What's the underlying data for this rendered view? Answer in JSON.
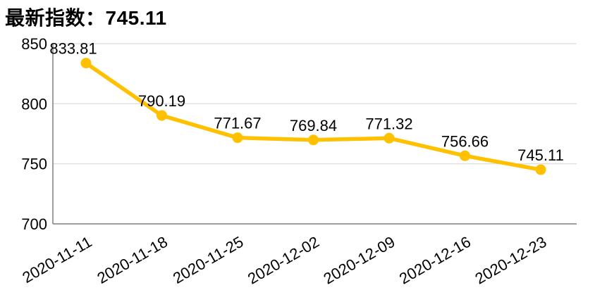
{
  "header": {
    "title": "最新指数：745.11"
  },
  "chart_data": {
    "type": "line",
    "title": "最新指数：745.11",
    "categories": [
      "2020-11-11",
      "2020-11-18",
      "2020-11-25",
      "2020-12-02",
      "2020-12-09",
      "2020-12-16",
      "2020-12-23"
    ],
    "values": [
      833.81,
      790.19,
      771.67,
      769.84,
      771.32,
      756.66,
      745.11
    ],
    "data_labels": [
      "833.81",
      "790.19",
      "771.67",
      "769.84",
      "771.32",
      "756.66",
      "745.11"
    ],
    "y_ticks": [
      850,
      800,
      750,
      700
    ],
    "ylim": [
      700,
      850
    ],
    "xlabel": "",
    "ylabel": "",
    "legend": "none",
    "grid": "horizontal",
    "colors": {
      "line": "#FFC000",
      "marker": "#FFC000",
      "gridline": "#D9D9D9",
      "axis": "#7F7F7F",
      "text": "#000000",
      "background": "#FFFFFF"
    }
  }
}
